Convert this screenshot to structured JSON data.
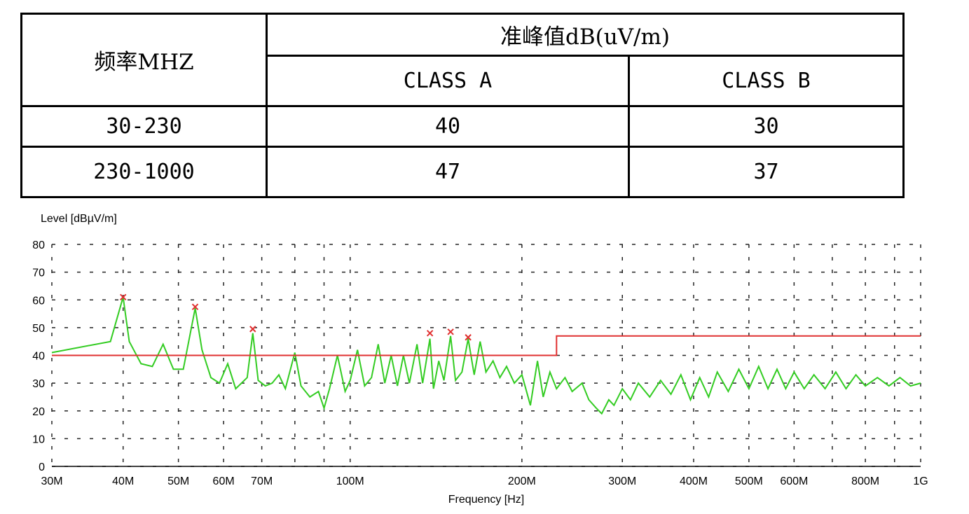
{
  "table": {
    "col_frequency": "频率MHZ",
    "col_quasi_peak": "准峰值dB(uV/m)",
    "col_class_a": "CLASS A",
    "col_class_b": "CLASS B",
    "rows": [
      {
        "freq": "30-230",
        "class_a": "40",
        "class_b": "30"
      },
      {
        "freq": "230-1000",
        "class_a": "47",
        "class_b": "37"
      }
    ]
  },
  "chart_data": {
    "type": "line",
    "title": "",
    "ylabel": "Level [dBµV/m]",
    "xlabel": "Frequency [Hz]",
    "x_scale": "log",
    "xlim_mhz": [
      30,
      1000
    ],
    "ylim": [
      0,
      80
    ],
    "yticks": [
      0,
      10,
      20,
      30,
      40,
      50,
      60,
      70,
      80
    ],
    "xticks": [
      {
        "mhz": 30,
        "label": "30M"
      },
      {
        "mhz": 40,
        "label": "40M"
      },
      {
        "mhz": 50,
        "label": "50M"
      },
      {
        "mhz": 60,
        "label": "60M"
      },
      {
        "mhz": 70,
        "label": "70M"
      },
      {
        "mhz": 100,
        "label": "100M"
      },
      {
        "mhz": 200,
        "label": "200M"
      },
      {
        "mhz": 300,
        "label": "300M"
      },
      {
        "mhz": 400,
        "label": "400M"
      },
      {
        "mhz": 500,
        "label": "500M"
      },
      {
        "mhz": 600,
        "label": "600M"
      },
      {
        "mhz": 800,
        "label": "800M"
      },
      {
        "mhz": 1000,
        "label": "1G"
      }
    ],
    "grid_mhz": [
      30,
      40,
      50,
      60,
      70,
      80,
      90,
      100,
      200,
      300,
      400,
      500,
      600,
      700,
      800,
      900,
      1000
    ],
    "grid": true,
    "limit_line": {
      "color": "#e03030",
      "points": [
        [
          30,
          40
        ],
        [
          230,
          40
        ],
        [
          230,
          47
        ],
        [
          1000,
          47
        ]
      ]
    },
    "measurement": {
      "color": "#33cc22",
      "points": [
        [
          30,
          41
        ],
        [
          38,
          45
        ],
        [
          40,
          61
        ],
        [
          41,
          45
        ],
        [
          43,
          37
        ],
        [
          45,
          36
        ],
        [
          47,
          44
        ],
        [
          49,
          35
        ],
        [
          51,
          35
        ],
        [
          53.5,
          57
        ],
        [
          55,
          42
        ],
        [
          57,
          32
        ],
        [
          59,
          30
        ],
        [
          61,
          37
        ],
        [
          63,
          28
        ],
        [
          66,
          32
        ],
        [
          67.5,
          48
        ],
        [
          69,
          31
        ],
        [
          71,
          29
        ],
        [
          73,
          30
        ],
        [
          75,
          33
        ],
        [
          77,
          28
        ],
        [
          80,
          41
        ],
        [
          82,
          29
        ],
        [
          85,
          25
        ],
        [
          88,
          27
        ],
        [
          90,
          21
        ],
        [
          92,
          28
        ],
        [
          95,
          40
        ],
        [
          98,
          27
        ],
        [
          100,
          31
        ],
        [
          103,
          42
        ],
        [
          106,
          29
        ],
        [
          109,
          32
        ],
        [
          112,
          44
        ],
        [
          115,
          30
        ],
        [
          118,
          40
        ],
        [
          121,
          29
        ],
        [
          124,
          40
        ],
        [
          127,
          30
        ],
        [
          131,
          44
        ],
        [
          134,
          30
        ],
        [
          138,
          46
        ],
        [
          140,
          28
        ],
        [
          143,
          38
        ],
        [
          146,
          31
        ],
        [
          150,
          47
        ],
        [
          153,
          31
        ],
        [
          157,
          34
        ],
        [
          161,
          46
        ],
        [
          165,
          33
        ],
        [
          169,
          45
        ],
        [
          173,
          34
        ],
        [
          178,
          38
        ],
        [
          183,
          32
        ],
        [
          188,
          36
        ],
        [
          194,
          30
        ],
        [
          200,
          33
        ],
        [
          207,
          22
        ],
        [
          213,
          38
        ],
        [
          218,
          25
        ],
        [
          224,
          34
        ],
        [
          230,
          28
        ],
        [
          238,
          32
        ],
        [
          245,
          27
        ],
        [
          255,
          30
        ],
        [
          262,
          24
        ],
        [
          270,
          21
        ],
        [
          276,
          19
        ],
        [
          284,
          24
        ],
        [
          290,
          22
        ],
        [
          300,
          28
        ],
        [
          310,
          24
        ],
        [
          320,
          30
        ],
        [
          335,
          25
        ],
        [
          350,
          31
        ],
        [
          365,
          26
        ],
        [
          380,
          33
        ],
        [
          395,
          24
        ],
        [
          410,
          32
        ],
        [
          425,
          25
        ],
        [
          440,
          34
        ],
        [
          460,
          27
        ],
        [
          480,
          35
        ],
        [
          500,
          28
        ],
        [
          520,
          36
        ],
        [
          540,
          28
        ],
        [
          560,
          35
        ],
        [
          580,
          28
        ],
        [
          600,
          34
        ],
        [
          625,
          28
        ],
        [
          650,
          33
        ],
        [
          680,
          28
        ],
        [
          710,
          34
        ],
        [
          740,
          28
        ],
        [
          770,
          33
        ],
        [
          800,
          29
        ],
        [
          840,
          32
        ],
        [
          880,
          29
        ],
        [
          920,
          32
        ],
        [
          960,
          29
        ],
        [
          1000,
          30
        ]
      ]
    },
    "peak_markers": {
      "color": "#e03030",
      "points": [
        [
          40,
          61
        ],
        [
          53.5,
          57.5
        ],
        [
          67.5,
          49.5
        ],
        [
          138,
          48
        ],
        [
          150,
          48.5
        ],
        [
          161,
          46.5
        ]
      ]
    }
  }
}
